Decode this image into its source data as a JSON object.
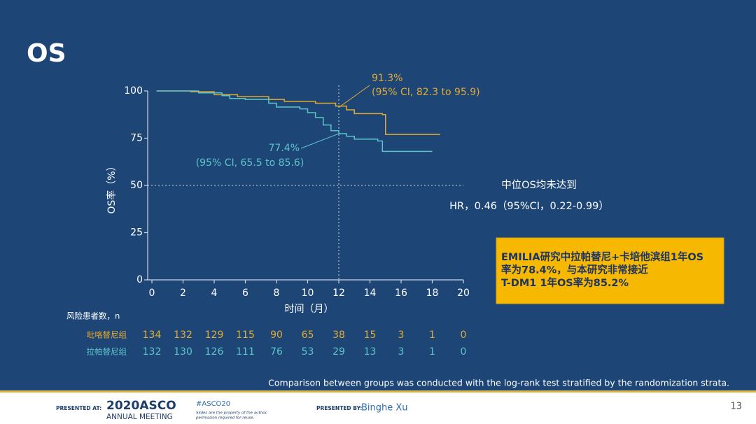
{
  "chart_data": {
    "type": "line",
    "title": "OS",
    "y_label": "OS率（%）",
    "x_label": "时间（月）",
    "xlim": [
      0,
      20
    ],
    "ylim": [
      0,
      100
    ],
    "xticks": [
      0,
      2,
      4,
      6,
      8,
      10,
      12,
      14,
      16,
      18,
      20
    ],
    "yticks": [
      0,
      25,
      50,
      75,
      100
    ],
    "reference_x": 12,
    "reference_y": 50,
    "series": [
      {
        "name": "吡咯替尼组",
        "color": "#e2aa2f",
        "x": [
          0.3,
          2.5,
          4,
          5.5,
          7.5,
          8.5,
          10.5,
          11.8,
          12.5,
          13,
          14.8,
          15,
          18.5
        ],
        "values": [
          100,
          99.6,
          98,
          97,
          95.5,
          94.5,
          93.5,
          92,
          90,
          88,
          87.5,
          77,
          77
        ]
      },
      {
        "name": "拉帕替尼组",
        "color": "#5cc4c9",
        "x": [
          0.3,
          3,
          4.5,
          5,
          6,
          7.5,
          8,
          9.5,
          10,
          10.5,
          11,
          11.5,
          12,
          12.5,
          13,
          14.5,
          14.8,
          18
        ],
        "values": [
          100,
          99,
          97.5,
          96,
          95.5,
          93.5,
          91.5,
          90.5,
          88.5,
          86,
          82,
          79,
          77.4,
          76,
          74.5,
          73.5,
          68,
          68
        ]
      }
    ],
    "annotations": [
      {
        "x": 12,
        "y": 91.3,
        "lines": [
          "91.3%",
          "(95% CI, 82.3 to 95.9)"
        ]
      },
      {
        "x": 12,
        "y": 77.4,
        "lines": [
          "77.4%",
          "(95% CI, 65.5 to 85.6)"
        ]
      }
    ],
    "stats_text": [
      "中位OS均未达到",
      "HR，0.46（95%CI，0.22-0.99）"
    ],
    "highlight_box": [
      "EMILIA研究中拉帕替尼+卡培他滨组1年OS",
      "率为78.4%，与本研究非常接近",
      "T-DM1 1年OS率为85.2%"
    ],
    "risk_table": {
      "title": "风险患者数，n",
      "rows": [
        {
          "name": "吡咯替尼组",
          "values": [
            134,
            132,
            129,
            115,
            90,
            65,
            38,
            15,
            3,
            1,
            0
          ]
        },
        {
          "name": "拉帕替尼组",
          "values": [
            132,
            130,
            126,
            111,
            76,
            53,
            29,
            13,
            3,
            1,
            0
          ]
        }
      ]
    },
    "footnote": "Comparison between groups was conducted with the log-rank test stratified by the randomization strata."
  },
  "footer": {
    "presented_at": "PRESENTED AT:",
    "meeting_year": "2020ASCO",
    "meeting_name": "ANNUAL MEETING",
    "hashtag": "#ASCO20",
    "disclaimer": [
      "Slides are the property of the author,",
      "permission required for reuse."
    ],
    "presented_by": "PRESENTED BY:",
    "presenter": "Binghe Xu",
    "page_number": "13"
  }
}
